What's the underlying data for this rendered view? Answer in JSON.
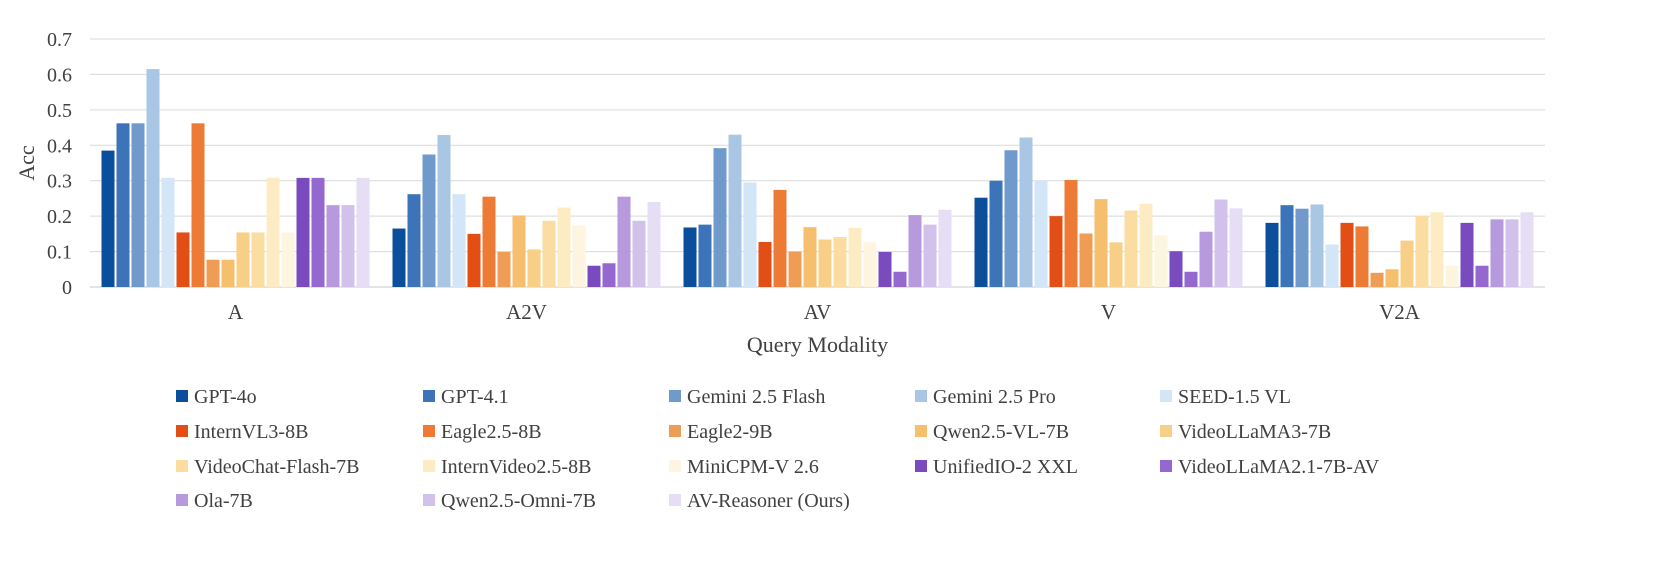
{
  "chart_data": {
    "type": "bar",
    "title": "",
    "xlabel": "Query Modality",
    "ylabel": "Acc",
    "ylim": [
      0,
      0.7
    ],
    "yticks": [
      "0",
      "0.1",
      "0.2",
      "0.3",
      "0.4",
      "0.5",
      "0.6",
      "0.7"
    ],
    "grid": true,
    "legend_position": "bottom",
    "categories": [
      "A",
      "A2V",
      "AV",
      "V",
      "V2A"
    ],
    "series": [
      {
        "name": "GPT-4o",
        "color": "#0b4f9c",
        "values": [
          0.385,
          0.165,
          0.168,
          0.252,
          0.181
        ]
      },
      {
        "name": "GPT-4.1",
        "color": "#3d73b8",
        "values": [
          0.462,
          0.262,
          0.176,
          0.3,
          0.231
        ]
      },
      {
        "name": "Gemini 2.5 Flash",
        "color": "#6f9acb",
        "values": [
          0.462,
          0.374,
          0.392,
          0.386,
          0.221
        ]
      },
      {
        "name": "Gemini 2.5 Pro",
        "color": "#a9c6e5",
        "values": [
          0.615,
          0.429,
          0.43,
          0.422,
          0.233
        ]
      },
      {
        "name": "SEED-1.5 VL",
        "color": "#d3e6f8",
        "values": [
          0.308,
          0.262,
          0.295,
          0.3,
          0.12
        ]
      },
      {
        "name": "InternVL3-8B",
        "color": "#e24e13",
        "values": [
          0.154,
          0.15,
          0.127,
          0.2,
          0.181
        ]
      },
      {
        "name": "Eagle2.5-8B",
        "color": "#ee7b35",
        "values": [
          0.462,
          0.255,
          0.274,
          0.302,
          0.171
        ]
      },
      {
        "name": "Eagle2-9B",
        "color": "#ef9c55",
        "values": [
          0.077,
          0.099,
          0.1,
          0.151,
          0.04
        ]
      },
      {
        "name": "Qwen2.5-VL-7B",
        "color": "#f6bf6e",
        "values": [
          0.077,
          0.202,
          0.169,
          0.248,
          0.05
        ]
      },
      {
        "name": "VideoLLaMA3-7B",
        "color": "#f8cf86",
        "values": [
          0.154,
          0.106,
          0.134,
          0.126,
          0.131
        ]
      },
      {
        "name": "VideoChat-Flash-7B",
        "color": "#fbdca1",
        "values": [
          0.154,
          0.187,
          0.141,
          0.216,
          0.201
        ]
      },
      {
        "name": "InternVideo2.5-8B",
        "color": "#fdebc4",
        "values": [
          0.308,
          0.224,
          0.167,
          0.235,
          0.211
        ]
      },
      {
        "name": "MiniCPM-V 2.6",
        "color": "#fef5e0",
        "values": [
          0.154,
          0.174,
          0.126,
          0.146,
          0.06
        ]
      },
      {
        "name": "UnifiedIO-2 XXL",
        "color": "#7a4bbf",
        "values": [
          0.308,
          0.06,
          0.099,
          0.101,
          0.181
        ]
      },
      {
        "name": "VideoLLaMA2.1-7B-AV",
        "color": "#9568cf",
        "values": [
          0.308,
          0.067,
          0.043,
          0.043,
          0.06
        ]
      },
      {
        "name": "Ola-7B",
        "color": "#b79add",
        "values": [
          0.231,
          0.255,
          0.203,
          0.156,
          0.191
        ]
      },
      {
        "name": "Qwen2.5-Omni-7B",
        "color": "#d2c1ea",
        "values": [
          0.231,
          0.187,
          0.176,
          0.247,
          0.191
        ]
      },
      {
        "name": "AV-Reasoner (Ours)",
        "color": "#e6def4",
        "values": [
          0.308,
          0.24,
          0.218,
          0.222,
          0.211
        ]
      }
    ]
  }
}
